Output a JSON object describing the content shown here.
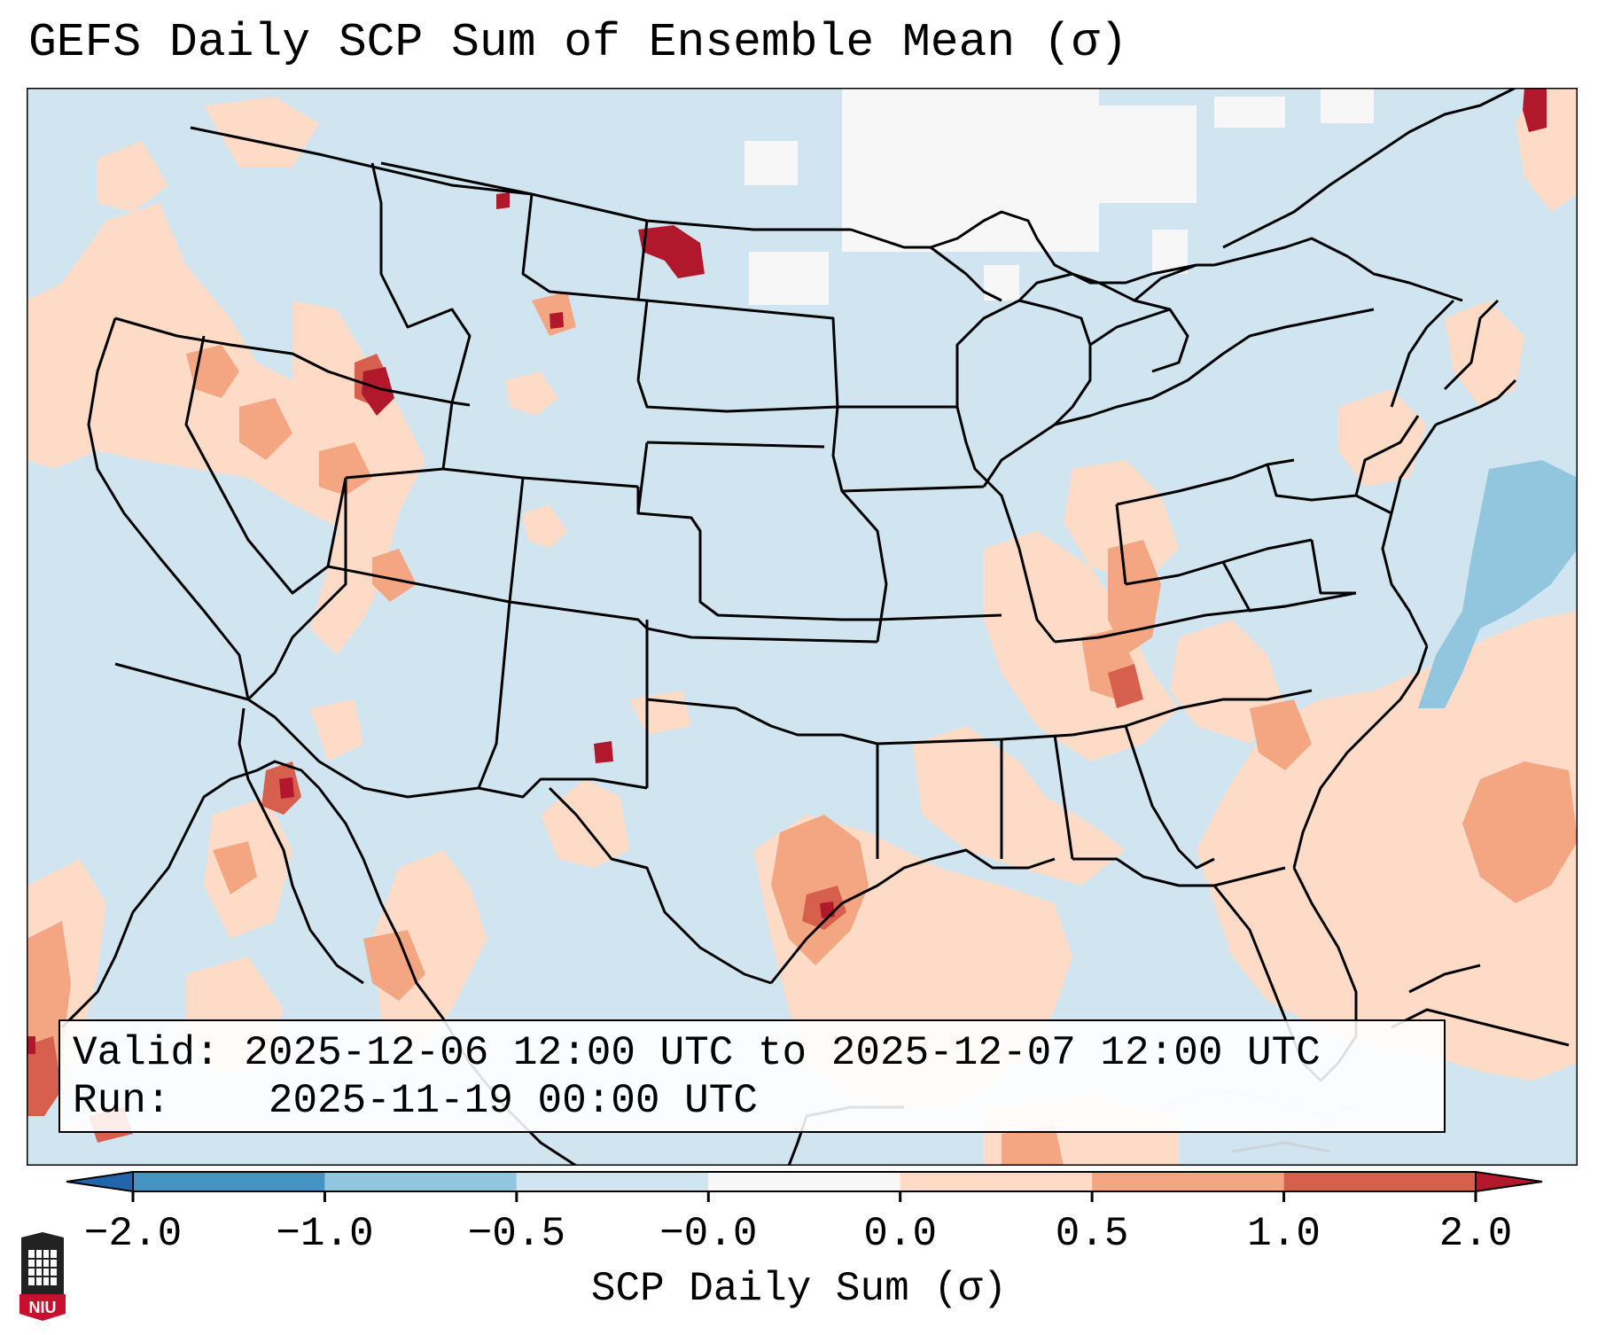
{
  "title": "GEFS Daily SCP Sum of Ensemble Mean (σ)",
  "info_box": {
    "valid_label": "Valid:",
    "valid_value": "2025-12-06 12:00 UTC to 2025-12-07 12:00 UTC",
    "run_label": "Run:",
    "run_value": "2025-11-19 00:00 UTC"
  },
  "colorbar": {
    "label": "SCP Daily Sum (σ)",
    "ticks": [
      "−2.0",
      "−1.0",
      "−0.5",
      "−0.0",
      "0.0",
      "0.5",
      "1.0",
      "2.0"
    ],
    "colors": [
      "#2166ac",
      "#4393c3",
      "#92c5de",
      "#d1e5f0",
      "#f7f7f7",
      "#fddbc7",
      "#f4a582",
      "#d6604d",
      "#b2182b"
    ]
  },
  "map": {
    "background_color": "#d1e5f0",
    "regions": [
      {
        "name": "pacific-northwest",
        "level": "0.0-0.5"
      },
      {
        "name": "idaho",
        "level": "1.0-2.0"
      },
      {
        "name": "montana-north",
        "level": "1.0-2.0"
      },
      {
        "name": "nevada-utah",
        "level": "0.5-1.0"
      },
      {
        "name": "texas-gulf-coast",
        "level": "1.0-2.0"
      },
      {
        "name": "tennessee-kentucky",
        "level": "0.5-1.0"
      },
      {
        "name": "gulf-of-mexico",
        "level": "0.0-0.5"
      },
      {
        "name": "atlantic-east",
        "level": "0.5-1.0"
      },
      {
        "name": "atlantic-northeast",
        "level": "-1.0--0.5"
      },
      {
        "name": "canada-north",
        "level": "-0.0-0.0"
      },
      {
        "name": "new-mexico",
        "level": "1.0-2.0"
      },
      {
        "name": "gulf-of-california",
        "level": "1.0-2.0"
      },
      {
        "name": "newfoundland",
        "level": "1.0-2.0"
      }
    ]
  },
  "logo_text": "NIU"
}
